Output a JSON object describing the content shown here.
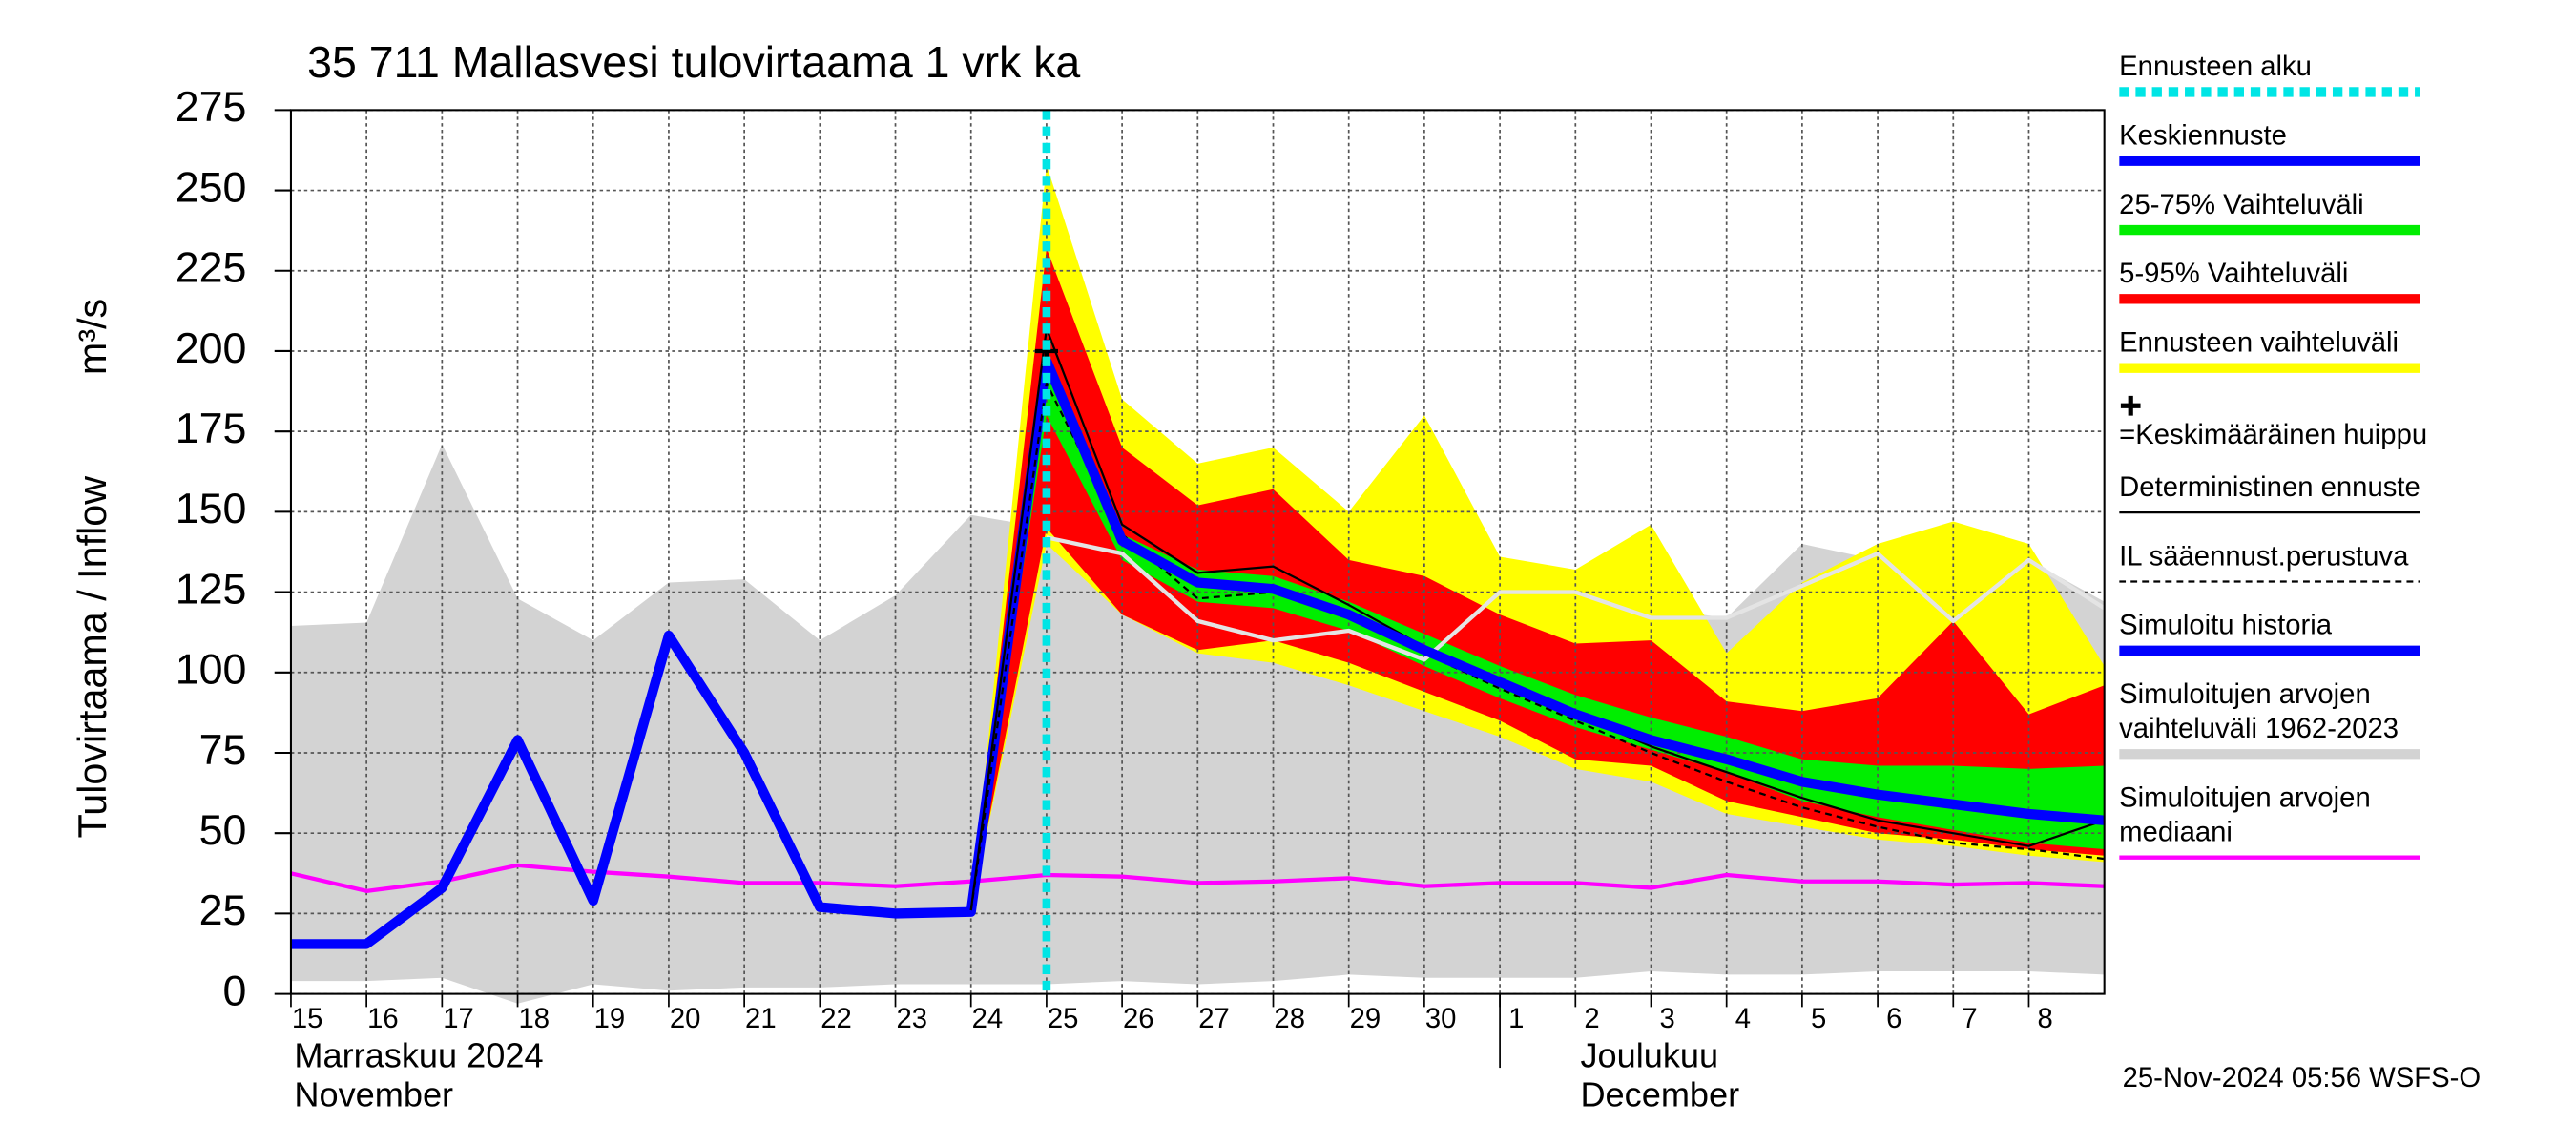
{
  "chart_data": {
    "type": "hydro-forecast",
    "title": "35 711 Mallasvesi tulovirtaama 1 vrk ka",
    "y_label": "Tulovirtaama / Inflow",
    "y_unit": "m³/s",
    "footer": "25-Nov-2024 05:56 WSFS-O",
    "categories": [
      "15",
      "16",
      "17",
      "18",
      "19",
      "20",
      "21",
      "22",
      "23",
      "24",
      "25",
      "26",
      "27",
      "28",
      "29",
      "30",
      "1",
      "2",
      "3",
      "4",
      "5",
      "6",
      "7",
      "8",
      null
    ],
    "months": [
      {
        "name": "Marraskuu 2024",
        "name_en": "November",
        "category": "15"
      },
      {
        "name": "Joulukuu",
        "name_en": "December",
        "category": "1"
      }
    ],
    "ylim": [
      0,
      275
    ],
    "yticks": [
      0,
      25,
      50,
      75,
      100,
      125,
      150,
      175,
      200,
      225,
      250,
      275
    ],
    "grid": true,
    "series": [
      {
        "name": "Ennusteen alku",
        "kind": "vline",
        "category": "25",
        "color": "#00e5e5"
      },
      {
        "name": "Keskiennuste",
        "kind": "line",
        "style": "thick",
        "color": "#0000ff",
        "values": [
          null,
          null,
          null,
          null,
          null,
          null,
          null,
          null,
          null,
          null,
          197,
          141,
          128,
          126,
          118,
          107,
          97,
          87,
          79,
          73,
          66,
          62,
          59,
          56,
          54
        ]
      },
      {
        "name": "25-75% Vaihteluväli",
        "kind": "band",
        "color": "#00ee00",
        "upper": [
          null,
          null,
          null,
          null,
          null,
          null,
          null,
          null,
          null,
          26,
          195,
          143,
          132,
          130,
          122,
          112,
          102,
          93,
          86,
          80,
          73,
          71,
          71,
          70,
          71
        ],
        "lower": [
          null,
          null,
          null,
          null,
          null,
          null,
          null,
          null,
          null,
          26,
          180,
          135,
          122,
          120,
          113,
          102,
          92,
          83,
          76,
          69,
          60,
          55,
          51,
          47,
          45
        ]
      },
      {
        "name": "5-95% Vaihteluväli",
        "kind": "band",
        "color": "#ff0000",
        "upper": [
          null,
          null,
          null,
          null,
          null,
          null,
          null,
          null,
          null,
          26,
          232,
          170,
          152,
          157,
          135,
          130,
          118,
          109,
          110,
          91,
          88,
          92,
          116,
          87,
          96
        ],
        "lower": [
          null,
          null,
          null,
          null,
          null,
          null,
          null,
          null,
          null,
          26,
          145,
          118,
          107,
          110,
          103,
          94,
          85,
          73,
          71,
          60,
          55,
          50,
          48,
          45,
          43
        ]
      },
      {
        "name": "Ennusteen vaihteluväli",
        "kind": "band",
        "color": "#ffff00",
        "upper": [
          null,
          null,
          null,
          null,
          null,
          null,
          null,
          null,
          null,
          26,
          258,
          185,
          165,
          170,
          150,
          180,
          136,
          132,
          146,
          106,
          128,
          140,
          147,
          140,
          102
        ],
        "lower": [
          null,
          null,
          null,
          null,
          null,
          null,
          null,
          null,
          null,
          26,
          140,
          118,
          106,
          103,
          96,
          88,
          80,
          70,
          66,
          56,
          52,
          48,
          46,
          43,
          41
        ]
      },
      {
        "name": "=Keskimääräinen huippu",
        "kind": "peak",
        "category": "25",
        "value": 200,
        "color": "#000000"
      },
      {
        "name": "Deterministinen ennuste",
        "kind": "line",
        "style": "thin",
        "color": "#000000",
        "values": [
          null,
          null,
          null,
          null,
          null,
          null,
          null,
          null,
          null,
          26,
          207,
          146,
          131,
          133,
          121,
          108,
          97,
          87,
          77,
          69,
          61,
          54,
          50,
          46,
          54
        ]
      },
      {
        "name": "IL sääennust.perustuva",
        "kind": "line",
        "style": "dashed",
        "color": "#000000",
        "values": [
          null,
          null,
          null,
          null,
          null,
          null,
          null,
          null,
          null,
          26,
          190,
          143,
          123,
          125,
          117,
          106,
          95,
          85,
          75,
          66,
          58,
          52,
          47,
          45,
          42
        ]
      },
      {
        "name": "Simuloitu historia",
        "kind": "line",
        "style": "thick",
        "color": "#0000ff",
        "values": [
          15.5,
          15.5,
          33,
          79,
          29,
          111.5,
          75,
          27,
          25,
          25.5,
          197,
          null,
          null,
          null,
          null,
          null,
          null,
          null,
          null,
          null,
          null,
          null,
          null,
          null,
          null
        ]
      },
      {
        "name": "Simuloitujen arvojen vaihteluväli 1962-2023",
        "kind": "band",
        "color": "#d3d3d3",
        "upper": [
          114.5,
          115.5,
          171,
          123,
          110,
          128,
          129,
          110,
          124,
          149,
          145,
          140,
          135,
          130,
          125,
          120,
          125,
          125,
          120,
          117,
          140,
          135,
          115,
          135,
          122
        ],
        "lower": [
          4,
          4,
          5,
          -3,
          3,
          1,
          2,
          2,
          3,
          3,
          3,
          4,
          3,
          4,
          6,
          5,
          5,
          5,
          7,
          6,
          6,
          7,
          7,
          7,
          6
        ]
      },
      {
        "name": "Simuloitujen arvojen mediaani",
        "kind": "line",
        "style": "medium",
        "color": "#ff00ff",
        "values": [
          37.5,
          32,
          35,
          40,
          38,
          36.5,
          34.5,
          34.5,
          33.5,
          35,
          37,
          36.5,
          34.5,
          35,
          36,
          33.5,
          34.5,
          34.5,
          33,
          37,
          35,
          35,
          34,
          34.5,
          33.5
        ]
      },
      {
        "kind": "line",
        "style": "medium",
        "color": "#e4e4e4",
        "values": [
          null,
          null,
          null,
          null,
          null,
          null,
          null,
          null,
          null,
          null,
          142,
          137,
          116,
          110,
          113,
          104,
          125,
          125,
          117,
          117,
          127,
          137,
          116,
          135,
          120
        ]
      }
    ]
  }
}
